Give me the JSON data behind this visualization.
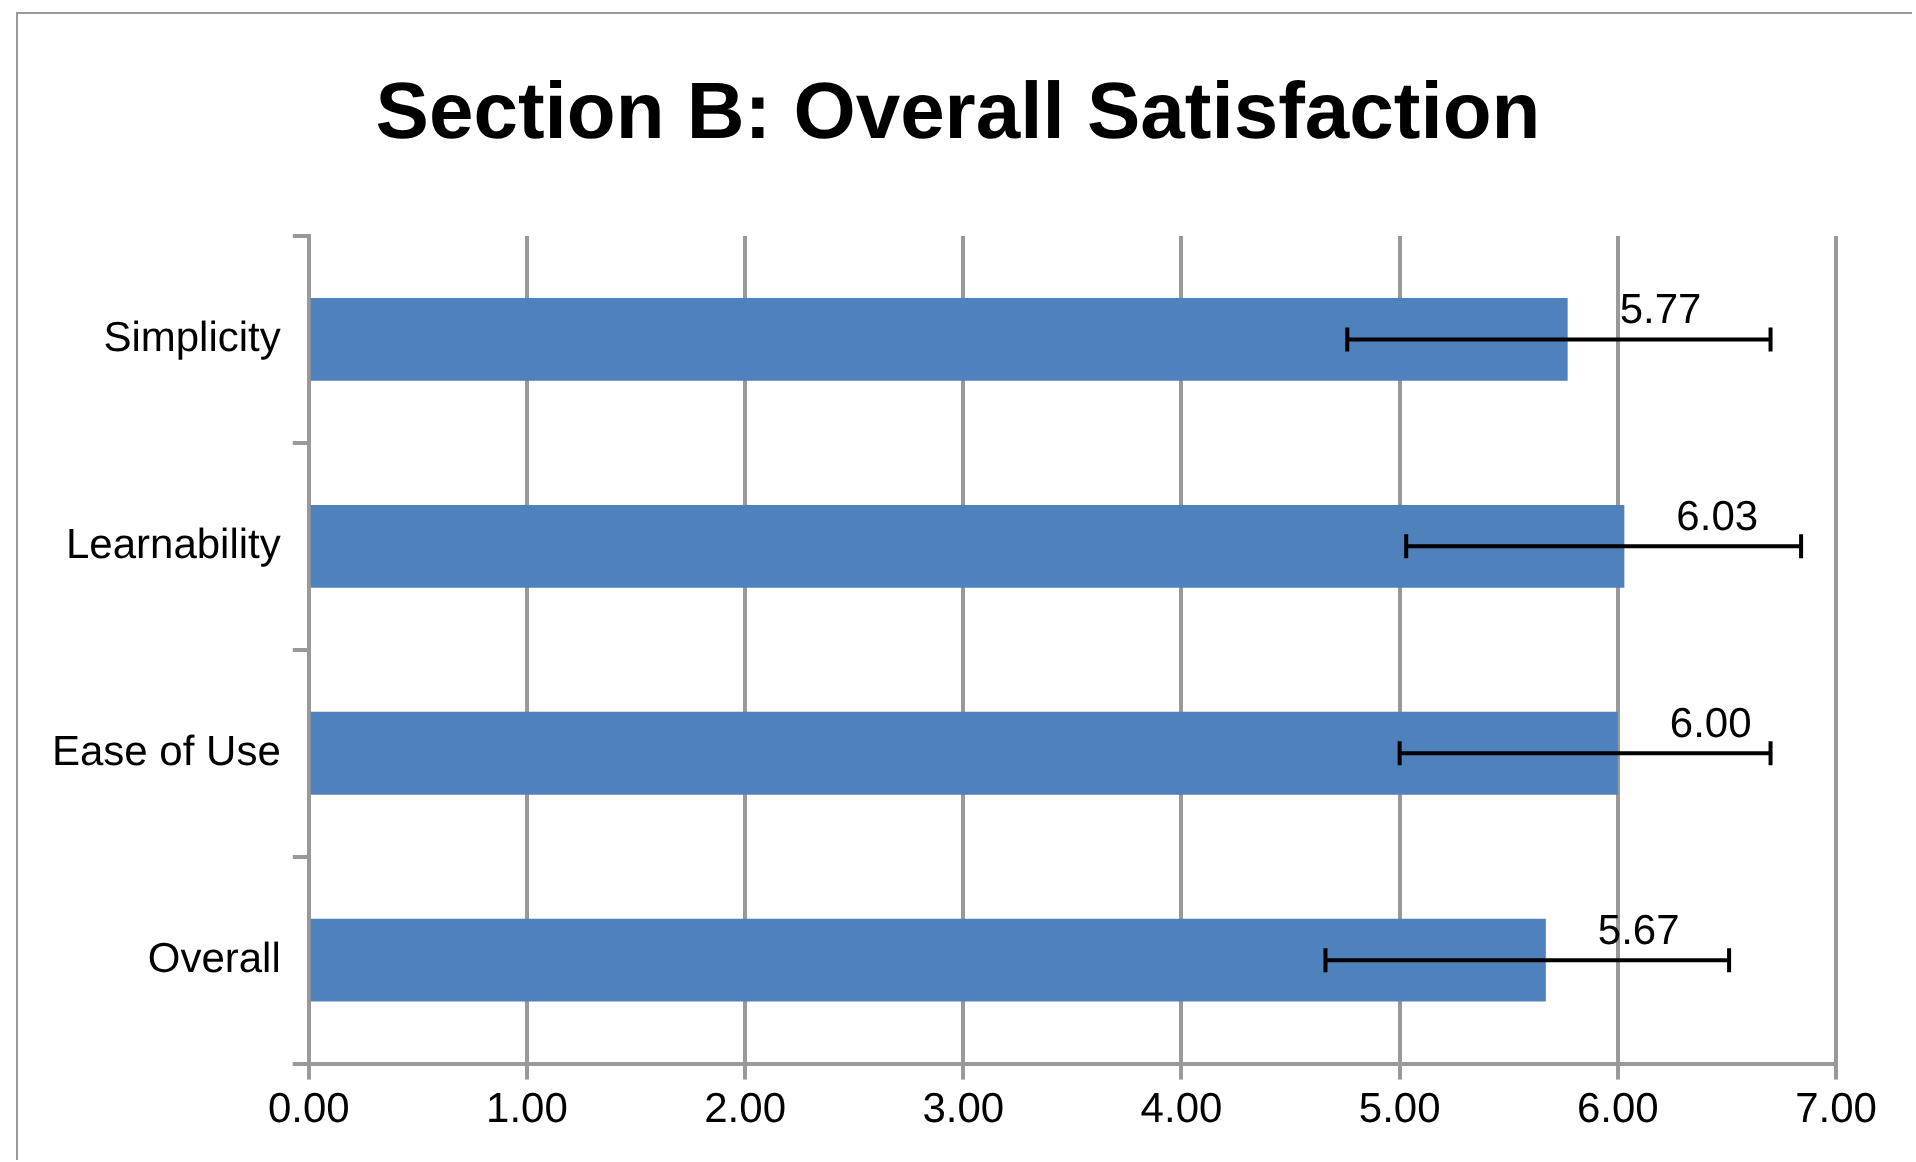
{
  "chart_data": {
    "type": "bar",
    "orientation": "horizontal",
    "title": "Section B: Overall Satisfaction",
    "categories": [
      "Simplicity",
      "Learnability",
      "Ease of Use",
      "Overall"
    ],
    "values": [
      5.77,
      6.03,
      6.0,
      5.67
    ],
    "errors": [
      [
        4.76,
        6.7
      ],
      [
        5.03,
        6.84
      ],
      [
        5.0,
        6.7
      ],
      [
        4.66,
        6.51
      ]
    ],
    "color": "#4f81bd",
    "value_labels": [
      "5.77",
      "6.03",
      "6.00",
      "5.67"
    ],
    "xlim": [
      0,
      7
    ],
    "xticks": [
      {
        "value": 0,
        "label": "0.00"
      },
      {
        "value": 1,
        "label": "1.00"
      },
      {
        "value": 2,
        "label": "2.00"
      },
      {
        "value": 3,
        "label": "3.00"
      },
      {
        "value": 4,
        "label": "4.00"
      },
      {
        "value": 5,
        "label": "5.00"
      },
      {
        "value": 6,
        "label": "6.00"
      },
      {
        "value": 7,
        "label": "7.00"
      }
    ],
    "grid": "x",
    "legend": false
  }
}
